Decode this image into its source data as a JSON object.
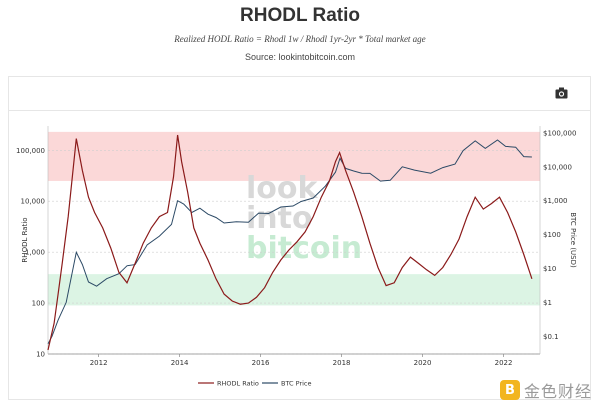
{
  "header": {
    "title": "RHODL Ratio",
    "subtitle": "Realized HODL Ratio = Rhodl 1w / Rhodl 1yr-2yr * Total market age",
    "source": "Source: lookintobitcoin.com"
  },
  "toolbar": {
    "camera_icon": "camera-icon"
  },
  "watermark": {
    "line1": "look",
    "line2": "into",
    "line3": "bitcoin"
  },
  "badge": {
    "icon_glyph": "B",
    "text": "金色财经"
  },
  "colors": {
    "rhodl_old": "#c4a89a",
    "rhodl": "#8b1a1a",
    "btc": "#2c4a66",
    "red_band": "#fbd8d8",
    "green_band": "#dcf4e4",
    "badge": "#f2b51f"
  },
  "chart_data": {
    "type": "line",
    "title": "RHODL Ratio",
    "ylabel": "RHODL Ratio",
    "y2label": "BTC Price (USD)",
    "yscale": "log",
    "ylim": [
      10,
      300000
    ],
    "y2lim": [
      0.03,
      160000
    ],
    "xlim": [
      2010.75,
      2022.9
    ],
    "x_ticks": [
      "2012",
      "2014",
      "2016",
      "2018",
      "2020",
      "2022"
    ],
    "y_ticks": [
      "100,000",
      "10,000",
      "1,000",
      "100",
      "10"
    ],
    "y2_ticks": [
      "$100,000",
      "$10,000",
      "$1,000",
      "$100",
      "$10",
      "$1",
      "$0.1"
    ],
    "bands": [
      {
        "name": "overvalued",
        "from": 25000,
        "to": 230000
      },
      {
        "name": "undervalued",
        "from": 90,
        "to": 370
      }
    ],
    "legend": [
      "RHODL Ratio",
      "BTC Price"
    ],
    "legend_position": "bottom-center",
    "series": [
      {
        "name": "RHODL Ratio",
        "x": [
          2010.75,
          2010.9,
          2011.0,
          2011.1,
          2011.25,
          2011.45,
          2011.6,
          2011.75,
          2011.9,
          2012.1,
          2012.3,
          2012.5,
          2012.7,
          2012.9,
          2013.1,
          2013.3,
          2013.5,
          2013.7,
          2013.85,
          2013.95,
          2014.05,
          2014.2,
          2014.35,
          2014.5,
          2014.7,
          2014.9,
          2015.1,
          2015.3,
          2015.5,
          2015.7,
          2015.9,
          2016.1,
          2016.3,
          2016.5,
          2016.7,
          2016.9,
          2017.1,
          2017.3,
          2017.5,
          2017.7,
          2017.85,
          2017.95,
          2018.1,
          2018.3,
          2018.5,
          2018.7,
          2018.9,
          2019.1,
          2019.3,
          2019.5,
          2019.7,
          2019.9,
          2020.1,
          2020.3,
          2020.5,
          2020.7,
          2020.9,
          2021.1,
          2021.3,
          2021.5,
          2021.7,
          2021.9,
          2022.1,
          2022.3,
          2022.5,
          2022.7
        ],
        "y": [
          12,
          40,
          150,
          600,
          5000,
          170000,
          40000,
          12000,
          6000,
          3000,
          1200,
          400,
          250,
          600,
          1500,
          3000,
          5000,
          6000,
          30000,
          200000,
          60000,
          15000,
          3000,
          1500,
          700,
          300,
          150,
          110,
          95,
          100,
          130,
          200,
          400,
          700,
          1100,
          1600,
          2500,
          5000,
          12000,
          25000,
          60000,
          90000,
          40000,
          15000,
          5000,
          1500,
          500,
          220,
          250,
          500,
          800,
          600,
          450,
          350,
          500,
          900,
          1800,
          5000,
          12000,
          7000,
          9000,
          12000,
          6000,
          2500,
          900,
          300
        ]
      },
      {
        "name": "BTC Price",
        "x": [
          2010.75,
          2010.85,
          2011.0,
          2011.2,
          2011.45,
          2011.6,
          2011.75,
          2011.95,
          2012.2,
          2012.5,
          2012.7,
          2012.9,
          2013.2,
          2013.5,
          2013.8,
          2013.95,
          2014.1,
          2014.3,
          2014.5,
          2014.7,
          2014.9,
          2015.1,
          2015.4,
          2015.7,
          2015.95,
          2016.2,
          2016.5,
          2016.8,
          2017.0,
          2017.3,
          2017.6,
          2017.85,
          2017.96,
          2018.1,
          2018.3,
          2018.5,
          2018.7,
          2018.96,
          2019.2,
          2019.5,
          2019.8,
          2020.2,
          2020.5,
          2020.8,
          2021.0,
          2021.3,
          2021.55,
          2021.85,
          2022.05,
          2022.3,
          2022.5,
          2022.7
        ],
        "y": [
          0.06,
          0.1,
          0.3,
          1,
          30,
          13,
          4,
          3,
          5,
          7,
          12,
          13,
          50,
          90,
          200,
          1000,
          800,
          450,
          600,
          400,
          320,
          220,
          240,
          230,
          430,
          420,
          650,
          700,
          950,
          1200,
          2700,
          7000,
          18000,
          9000,
          7500,
          6500,
          6400,
          3800,
          4000,
          10000,
          8000,
          6500,
          9500,
          12000,
          30000,
          58000,
          35000,
          62000,
          40000,
          38000,
          20000,
          19500
        ]
      }
    ]
  }
}
